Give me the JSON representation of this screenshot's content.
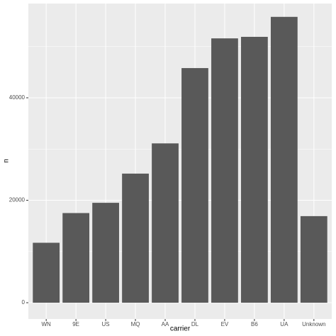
{
  "chart_data": {
    "type": "bar",
    "x_label": "carrier",
    "y_label": "n",
    "categories": [
      "WN",
      "9E",
      "US",
      "MQ",
      "AA",
      "DL",
      "EV",
      "B6",
      "UA",
      "Unknown"
    ],
    "values": [
      11700,
      17500,
      19500,
      25200,
      31100,
      45800,
      51600,
      51900,
      55800,
      16900
    ],
    "color": "#595959",
    "ylim": [
      -3180,
      58400
    ],
    "yticks": [
      0,
      20000,
      40000
    ],
    "minor_yticks": [
      10000,
      30000,
      50000
    ],
    "grid": true
  }
}
